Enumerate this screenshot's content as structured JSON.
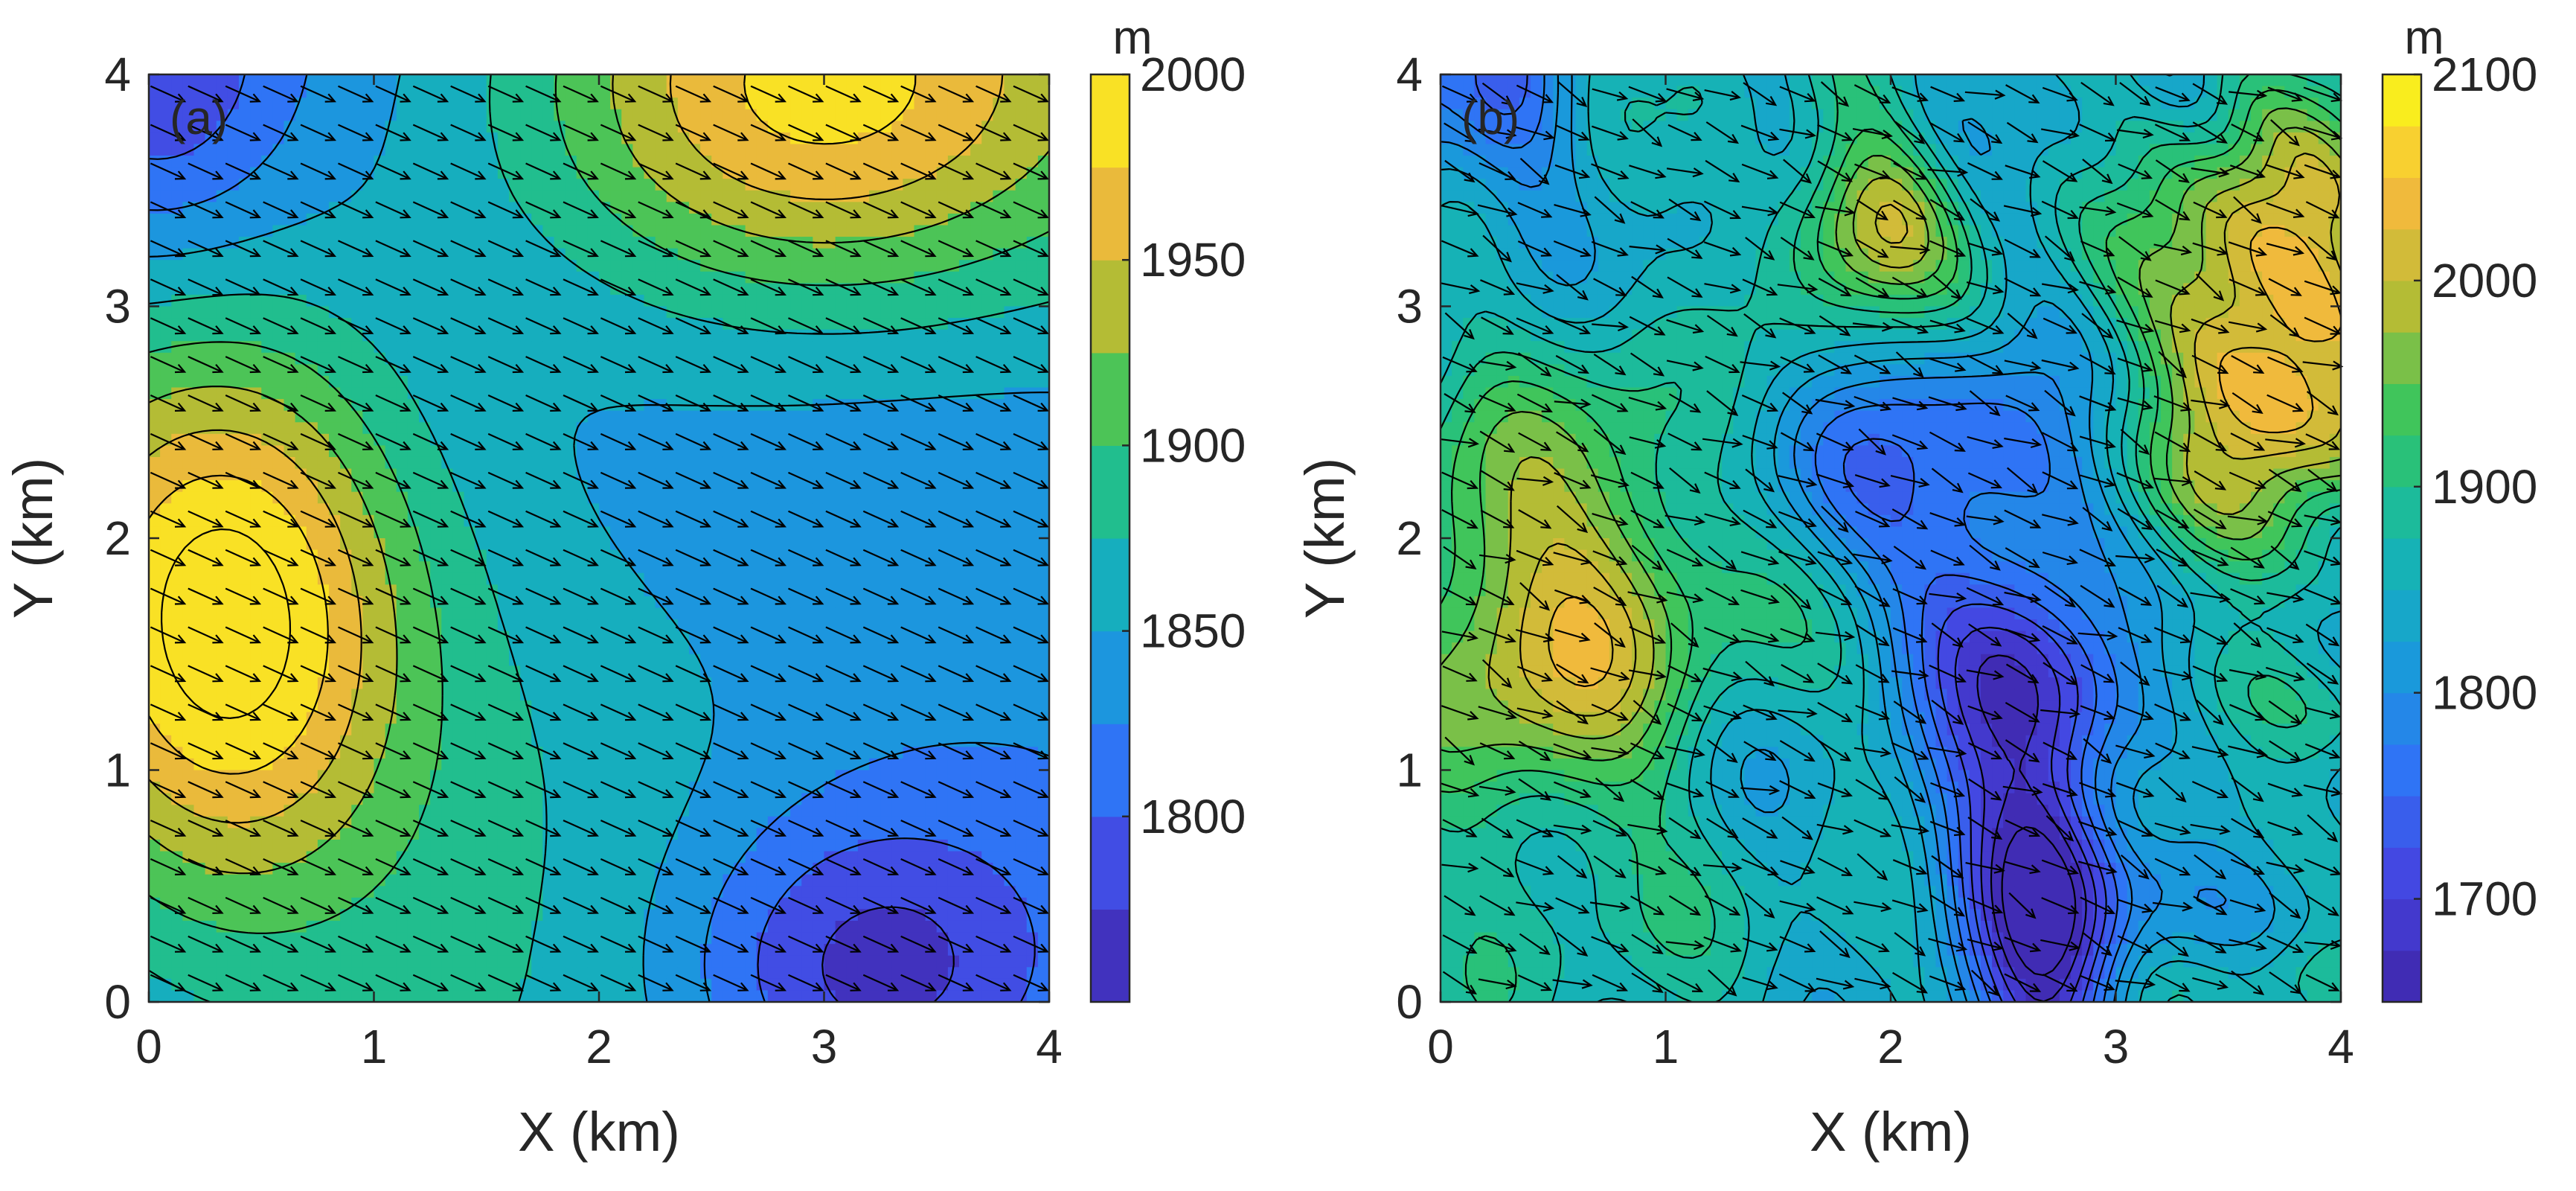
{
  "chart_data": [
    {
      "type": "heatmap",
      "subtype": "filled-contour-with-wind-vectors",
      "panel_label": "(a)",
      "xlabel": "X (km)",
      "ylabel": "Y (km)",
      "xlim": [
        0,
        4
      ],
      "ylim": [
        0,
        4
      ],
      "x_ticks": [
        "0",
        "1",
        "2",
        "3",
        "4"
      ],
      "y_ticks": [
        "0",
        "1",
        "2",
        "3",
        "4"
      ],
      "colorbar": {
        "unit": "m",
        "range": [
          1750,
          2000
        ],
        "ticks": [
          "1800",
          "1850",
          "1900",
          "1950",
          "2000"
        ],
        "colormap": "parula"
      },
      "features": [
        {
          "type": "high",
          "x": 0.35,
          "y": 1.65,
          "value": 1995
        },
        {
          "type": "high",
          "x": 2.8,
          "y": 3.8,
          "value": 1995
        },
        {
          "type": "low",
          "x": 3.1,
          "y": 0.1,
          "value": 1755
        },
        {
          "type": "low",
          "x": 0.0,
          "y": 4.0,
          "value": 1810
        }
      ],
      "wind": {
        "direction": "toward ESE",
        "vector_u": 1.0,
        "vector_v": -0.45
      }
    },
    {
      "type": "heatmap",
      "subtype": "filled-contour-with-wind-vectors",
      "panel_label": "(b)",
      "xlabel": "X (km)",
      "ylabel": "Y (km)",
      "xlim": [
        0,
        4
      ],
      "ylim": [
        0,
        4
      ],
      "x_ticks": [
        "0",
        "1",
        "2",
        "3",
        "4"
      ],
      "y_ticks": [
        "0",
        "1",
        "2",
        "3",
        "4"
      ],
      "colorbar": {
        "unit": "m",
        "range": [
          1650,
          2100
        ],
        "ticks": [
          "1700",
          "1800",
          "1900",
          "2000",
          "2100"
        ],
        "colormap": "parula"
      },
      "features": [
        {
          "type": "high",
          "x": 0.55,
          "y": 1.7,
          "value": 2030
        },
        {
          "type": "high",
          "x": 3.65,
          "y": 2.9,
          "value": 2080
        },
        {
          "type": "high",
          "x": 1.9,
          "y": 3.3,
          "value": 2000
        },
        {
          "type": "low",
          "x": 2.7,
          "y": 0.2,
          "value": 1660
        },
        {
          "type": "low",
          "x": 2.5,
          "y": 1.2,
          "value": 1730
        },
        {
          "type": "low",
          "x": 0.1,
          "y": 3.85,
          "value": 1740
        }
      ],
      "wind": {
        "direction": "toward ESE, turbulent",
        "vector_u": 1.0,
        "vector_v": -0.45
      }
    }
  ]
}
